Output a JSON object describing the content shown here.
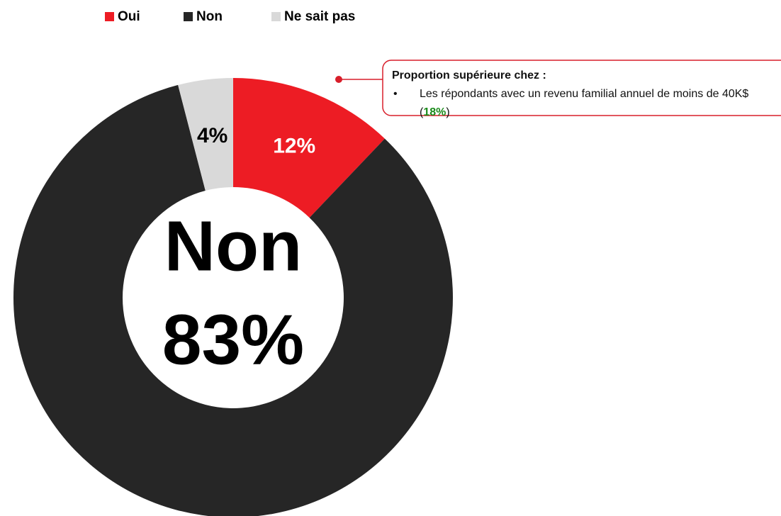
{
  "chart_data": {
    "type": "pie",
    "categories": [
      "Oui",
      "Non",
      "Ne sait pas"
    ],
    "values": [
      12,
      83,
      4
    ],
    "value_labels": [
      "12%",
      "83%",
      "4%"
    ],
    "colors": [
      "#ed1c24",
      "#262626",
      "#d9d9d9"
    ],
    "legend": "top",
    "annotation": {
      "title": "Proportion supérieure chez :",
      "text": "Les répondants avec un revenu familial annuel de moins de 40K$ (",
      "highlight": "18%",
      "end": ")"
    }
  }
}
